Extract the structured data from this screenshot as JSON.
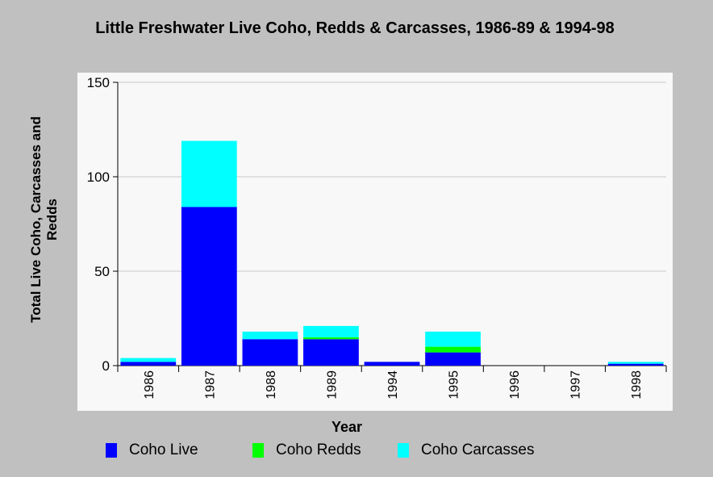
{
  "chart_data": {
    "type": "bar",
    "stacked": true,
    "title": "Little Freshwater Live Coho, Redds & Carcasses, 1986-89 & 1994-98",
    "xlabel": "Year",
    "ylabel": "Total Live Coho, Carcasses and Redds",
    "ylim": [
      0,
      150
    ],
    "yticks": [
      "0",
      "50",
      "100",
      "150"
    ],
    "grid": true,
    "categories": [
      "1986",
      "1987",
      "1988",
      "1989",
      "1994",
      "1995",
      "1996",
      "1997",
      "1998"
    ],
    "series": [
      {
        "name": "Coho Live",
        "color": "#0000ff",
        "values": [
          2,
          84,
          14,
          14,
          2,
          7,
          0,
          0,
          1
        ]
      },
      {
        "name": "Coho Redds",
        "color": "#00ff00",
        "values": [
          0,
          0,
          0,
          1,
          0,
          3,
          0,
          0,
          0
        ]
      },
      {
        "name": "Coho Carcasses",
        "color": "#00ffff",
        "values": [
          2,
          35,
          4,
          6,
          0,
          8,
          0,
          0,
          1
        ]
      }
    ],
    "legend_position": "bottom"
  },
  "colors": {
    "background": "#c0c0c0",
    "plot_background": "#f8f8f8",
    "gridline": "#c8c8c8"
  }
}
